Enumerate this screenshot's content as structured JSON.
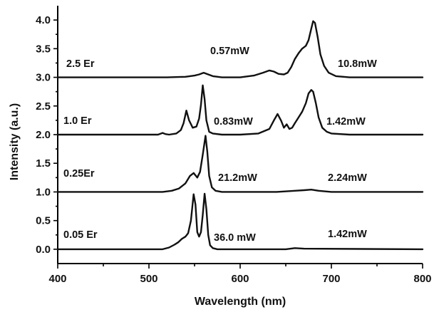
{
  "chart_data": {
    "type": "line",
    "title": "",
    "xlabel": "Wavelength (nm)",
    "ylabel": "Intensity (a.u.)",
    "xlim": [
      400,
      800
    ],
    "ylim": [
      -0.25,
      4.25
    ],
    "xticks": [
      "400",
      "500",
      "600",
      "700",
      "800"
    ],
    "yticks": [
      "0.0",
      "0.5",
      "1.0",
      "1.5",
      "2.0",
      "2.5",
      "3.0",
      "3.5",
      "4.0"
    ],
    "grid": false,
    "legend": "none",
    "series": [
      {
        "label": "2.5 Er",
        "powers": [
          "0.57mW",
          "10.8mW"
        ],
        "x": [
          400,
          520,
          540,
          550,
          555,
          560,
          565,
          570,
          580,
          600,
          615,
          625,
          632,
          637,
          642,
          648,
          652,
          656,
          660,
          664,
          668,
          672,
          675,
          678,
          680,
          682,
          685,
          688,
          692,
          697,
          705,
          720,
          800
        ],
        "y": [
          3.0,
          3.0,
          3.01,
          3.03,
          3.05,
          3.08,
          3.05,
          3.02,
          3.0,
          3.0,
          3.03,
          3.08,
          3.12,
          3.1,
          3.06,
          3.05,
          3.08,
          3.18,
          3.32,
          3.42,
          3.5,
          3.55,
          3.65,
          3.85,
          3.98,
          3.95,
          3.7,
          3.4,
          3.2,
          3.08,
          3.02,
          3.0,
          3.0
        ]
      },
      {
        "label": "1.0 Er",
        "powers": [
          "0.83mW",
          "1.42mW"
        ],
        "x": [
          400,
          510,
          515,
          518,
          522,
          530,
          535,
          538,
          541,
          544,
          548,
          552,
          555,
          557,
          559,
          561,
          563,
          566,
          570,
          580,
          600,
          620,
          632,
          637,
          641,
          645,
          648,
          651,
          654,
          657,
          660,
          664,
          668,
          672,
          675,
          678,
          680,
          683,
          686,
          690,
          695,
          700,
          720,
          800
        ],
        "y": [
          2.0,
          2.0,
          2.03,
          2.01,
          2.0,
          2.02,
          2.08,
          2.2,
          2.42,
          2.25,
          2.12,
          2.14,
          2.28,
          2.52,
          2.86,
          2.62,
          2.25,
          2.05,
          2.02,
          2.0,
          2.0,
          2.02,
          2.1,
          2.25,
          2.36,
          2.24,
          2.12,
          2.18,
          2.1,
          2.12,
          2.2,
          2.3,
          2.4,
          2.55,
          2.72,
          2.78,
          2.75,
          2.55,
          2.3,
          2.12,
          2.05,
          2.02,
          2.0,
          2.0
        ]
      },
      {
        "label": "0.25Er",
        "powers": [
          "21.2mW",
          "2.24mW"
        ],
        "x": [
          400,
          515,
          525,
          533,
          540,
          545,
          549,
          553,
          556,
          559,
          562,
          564,
          566,
          569,
          573,
          580,
          600,
          640,
          660,
          670,
          678,
          686,
          700,
          800
        ],
        "y": [
          1.0,
          1.0,
          1.02,
          1.06,
          1.15,
          1.28,
          1.33,
          1.25,
          1.35,
          1.65,
          1.98,
          1.7,
          1.28,
          1.08,
          1.02,
          1.0,
          1.0,
          1.0,
          1.02,
          1.03,
          1.04,
          1.02,
          1.0,
          1.0
        ]
      },
      {
        "label": "0.05 Er",
        "powers": [
          "36.0 mW",
          "1.42mW"
        ],
        "x": [
          400,
          515,
          522,
          528,
          532,
          536,
          540,
          543,
          546,
          549,
          551,
          553,
          555,
          557,
          559,
          561,
          563,
          565,
          567,
          570,
          575,
          600,
          650,
          660,
          670,
          800
        ],
        "y": [
          0.0,
          0.0,
          0.03,
          0.08,
          0.12,
          0.18,
          0.22,
          0.28,
          0.5,
          0.96,
          0.78,
          0.3,
          0.22,
          0.3,
          0.6,
          0.97,
          0.7,
          0.25,
          0.07,
          0.02,
          0.0,
          0.0,
          0.0,
          0.02,
          0.01,
          0.0
        ]
      }
    ]
  }
}
